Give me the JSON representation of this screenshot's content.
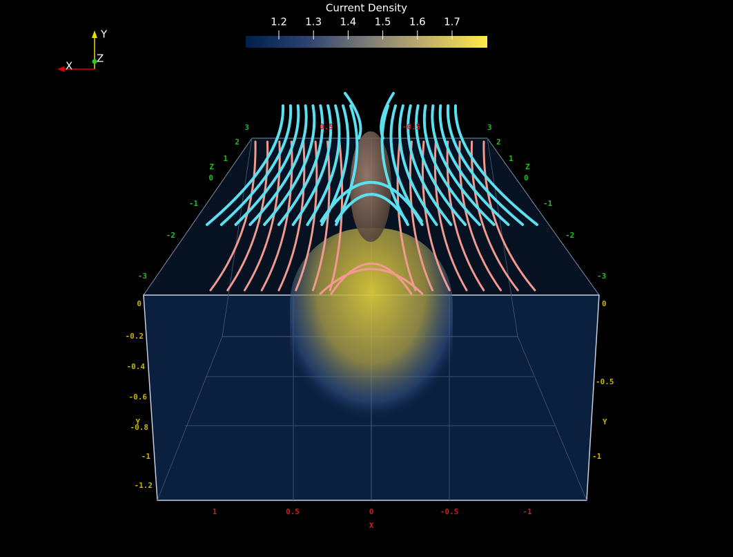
{
  "colorbar": {
    "title": "Current Density",
    "ticks": [
      1.2,
      1.3,
      1.4,
      1.5,
      1.6,
      1.7
    ]
  },
  "orientation": {
    "y": "Y",
    "z": "Z",
    "x": "X"
  },
  "z_axis_left": {
    "labels": [
      "3",
      "2",
      "1",
      "0",
      "-1",
      "-2",
      "-3"
    ],
    "title": "Z"
  },
  "z_axis_right": {
    "labels": [
      "3",
      "2",
      "1",
      "0",
      "-1",
      "-2",
      "-3"
    ],
    "title": "Z"
  },
  "y_axis_left": {
    "labels": [
      "0",
      "-0.2",
      "-0.4",
      "-0.6",
      "-0.8",
      "-1",
      "-1.2"
    ],
    "title": "Y"
  },
  "y_axis_right": {
    "labels": [
      "0",
      "-0.5",
      "-1"
    ],
    "title": "Y"
  },
  "x_axis_front": {
    "labels": [
      "1",
      "0.5",
      "0",
      "-0.5",
      "-1"
    ],
    "title": "X"
  },
  "x_axis_back": {
    "labels": [
      "0.5",
      "-0.5"
    ]
  }
}
